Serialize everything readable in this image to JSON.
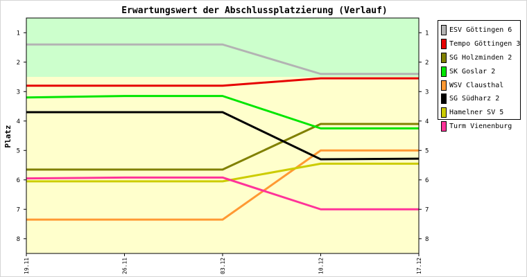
{
  "chart_data": {
    "type": "line",
    "title": "Erwartungswert der Abschlussplatzierung (Verlauf)",
    "ylabel": "Platz",
    "xlabel": "",
    "x": [
      "19.11",
      "26.11",
      "03.12",
      "10.12",
      "17.12"
    ],
    "y_ticks": [
      1,
      2,
      3,
      4,
      5,
      6,
      7,
      8
    ],
    "ylim": [
      0.5,
      8.5
    ],
    "y_inverted": true,
    "bands": [
      {
        "from": 0.5,
        "to": 2.5,
        "color": "#ccffcc"
      },
      {
        "from": 2.5,
        "to": 8.5,
        "color": "#ffffcc"
      }
    ],
    "legend_position": "right",
    "series": [
      {
        "name": "ESV Göttingen 6",
        "color": "#b3b3b3",
        "values": [
          1.4,
          1.4,
          1.4,
          2.4,
          2.4
        ]
      },
      {
        "name": "Tempo Göttingen 3",
        "color": "#e60000",
        "values": [
          2.8,
          2.8,
          2.8,
          2.55,
          2.55
        ]
      },
      {
        "name": "SG Holzminden 2",
        "color": "#808000",
        "values": [
          5.65,
          5.65,
          5.65,
          4.1,
          4.1
        ]
      },
      {
        "name": "SK Goslar 2",
        "color": "#00e600",
        "values": [
          3.2,
          3.15,
          3.15,
          4.25,
          4.25
        ]
      },
      {
        "name": "WSV Clausthal",
        "color": "#ff9933",
        "values": [
          7.35,
          7.35,
          7.35,
          5.0,
          5.0
        ]
      },
      {
        "name": "SG Südharz 2",
        "color": "#000000",
        "values": [
          3.7,
          3.7,
          3.7,
          5.3,
          5.28
        ]
      },
      {
        "name": "Hamelner SV 5",
        "color": "#cccc00",
        "values": [
          6.05,
          6.05,
          6.05,
          5.45,
          5.45
        ]
      },
      {
        "name": "Turm Vienenburg",
        "color": "#ff3399",
        "values": [
          5.95,
          5.92,
          5.92,
          7.0,
          7.0
        ]
      }
    ]
  }
}
